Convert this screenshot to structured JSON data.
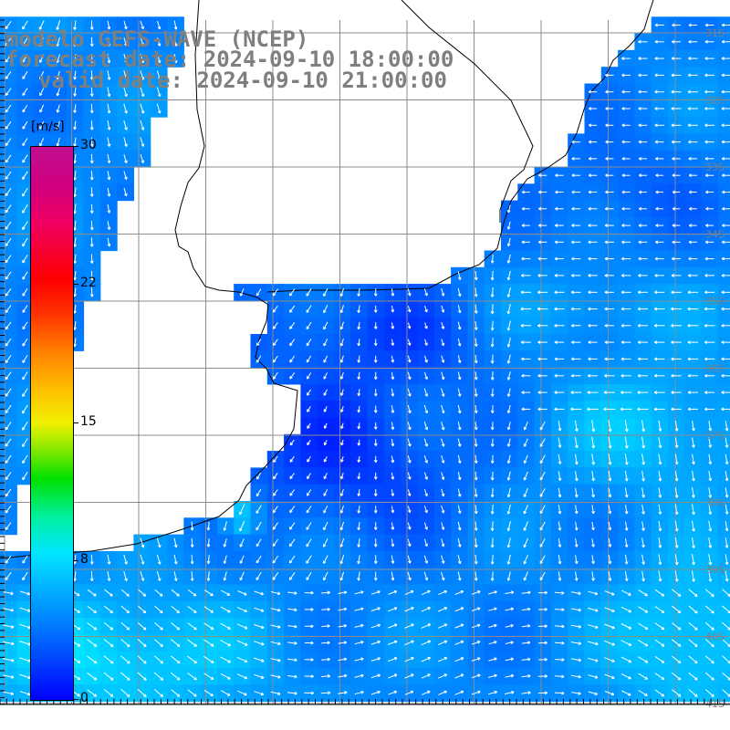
{
  "title": {
    "line1": "modelo GEFS-WAVE (NCEP)",
    "line2": "forecast date: 2024-09-10 18:00:00",
    "line3": "valid date: 2024-09-10 21:00:00"
  },
  "colorbar": {
    "unit": "[m/s]",
    "ticks": [
      "30",
      "22",
      "15",
      "8",
      "0"
    ],
    "min": 0,
    "max": 30
  },
  "latitude_labels": [
    "31S",
    "32S",
    "33S",
    "34S",
    "35S",
    "36S",
    "37S",
    "38S",
    "39S",
    "40S",
    "41S"
  ],
  "colors": {
    "land": "#ffffff",
    "coast": "#000000",
    "grid": "#8c8c8c",
    "arrow": "#ffffff",
    "label": "#7f7f7f"
  }
}
